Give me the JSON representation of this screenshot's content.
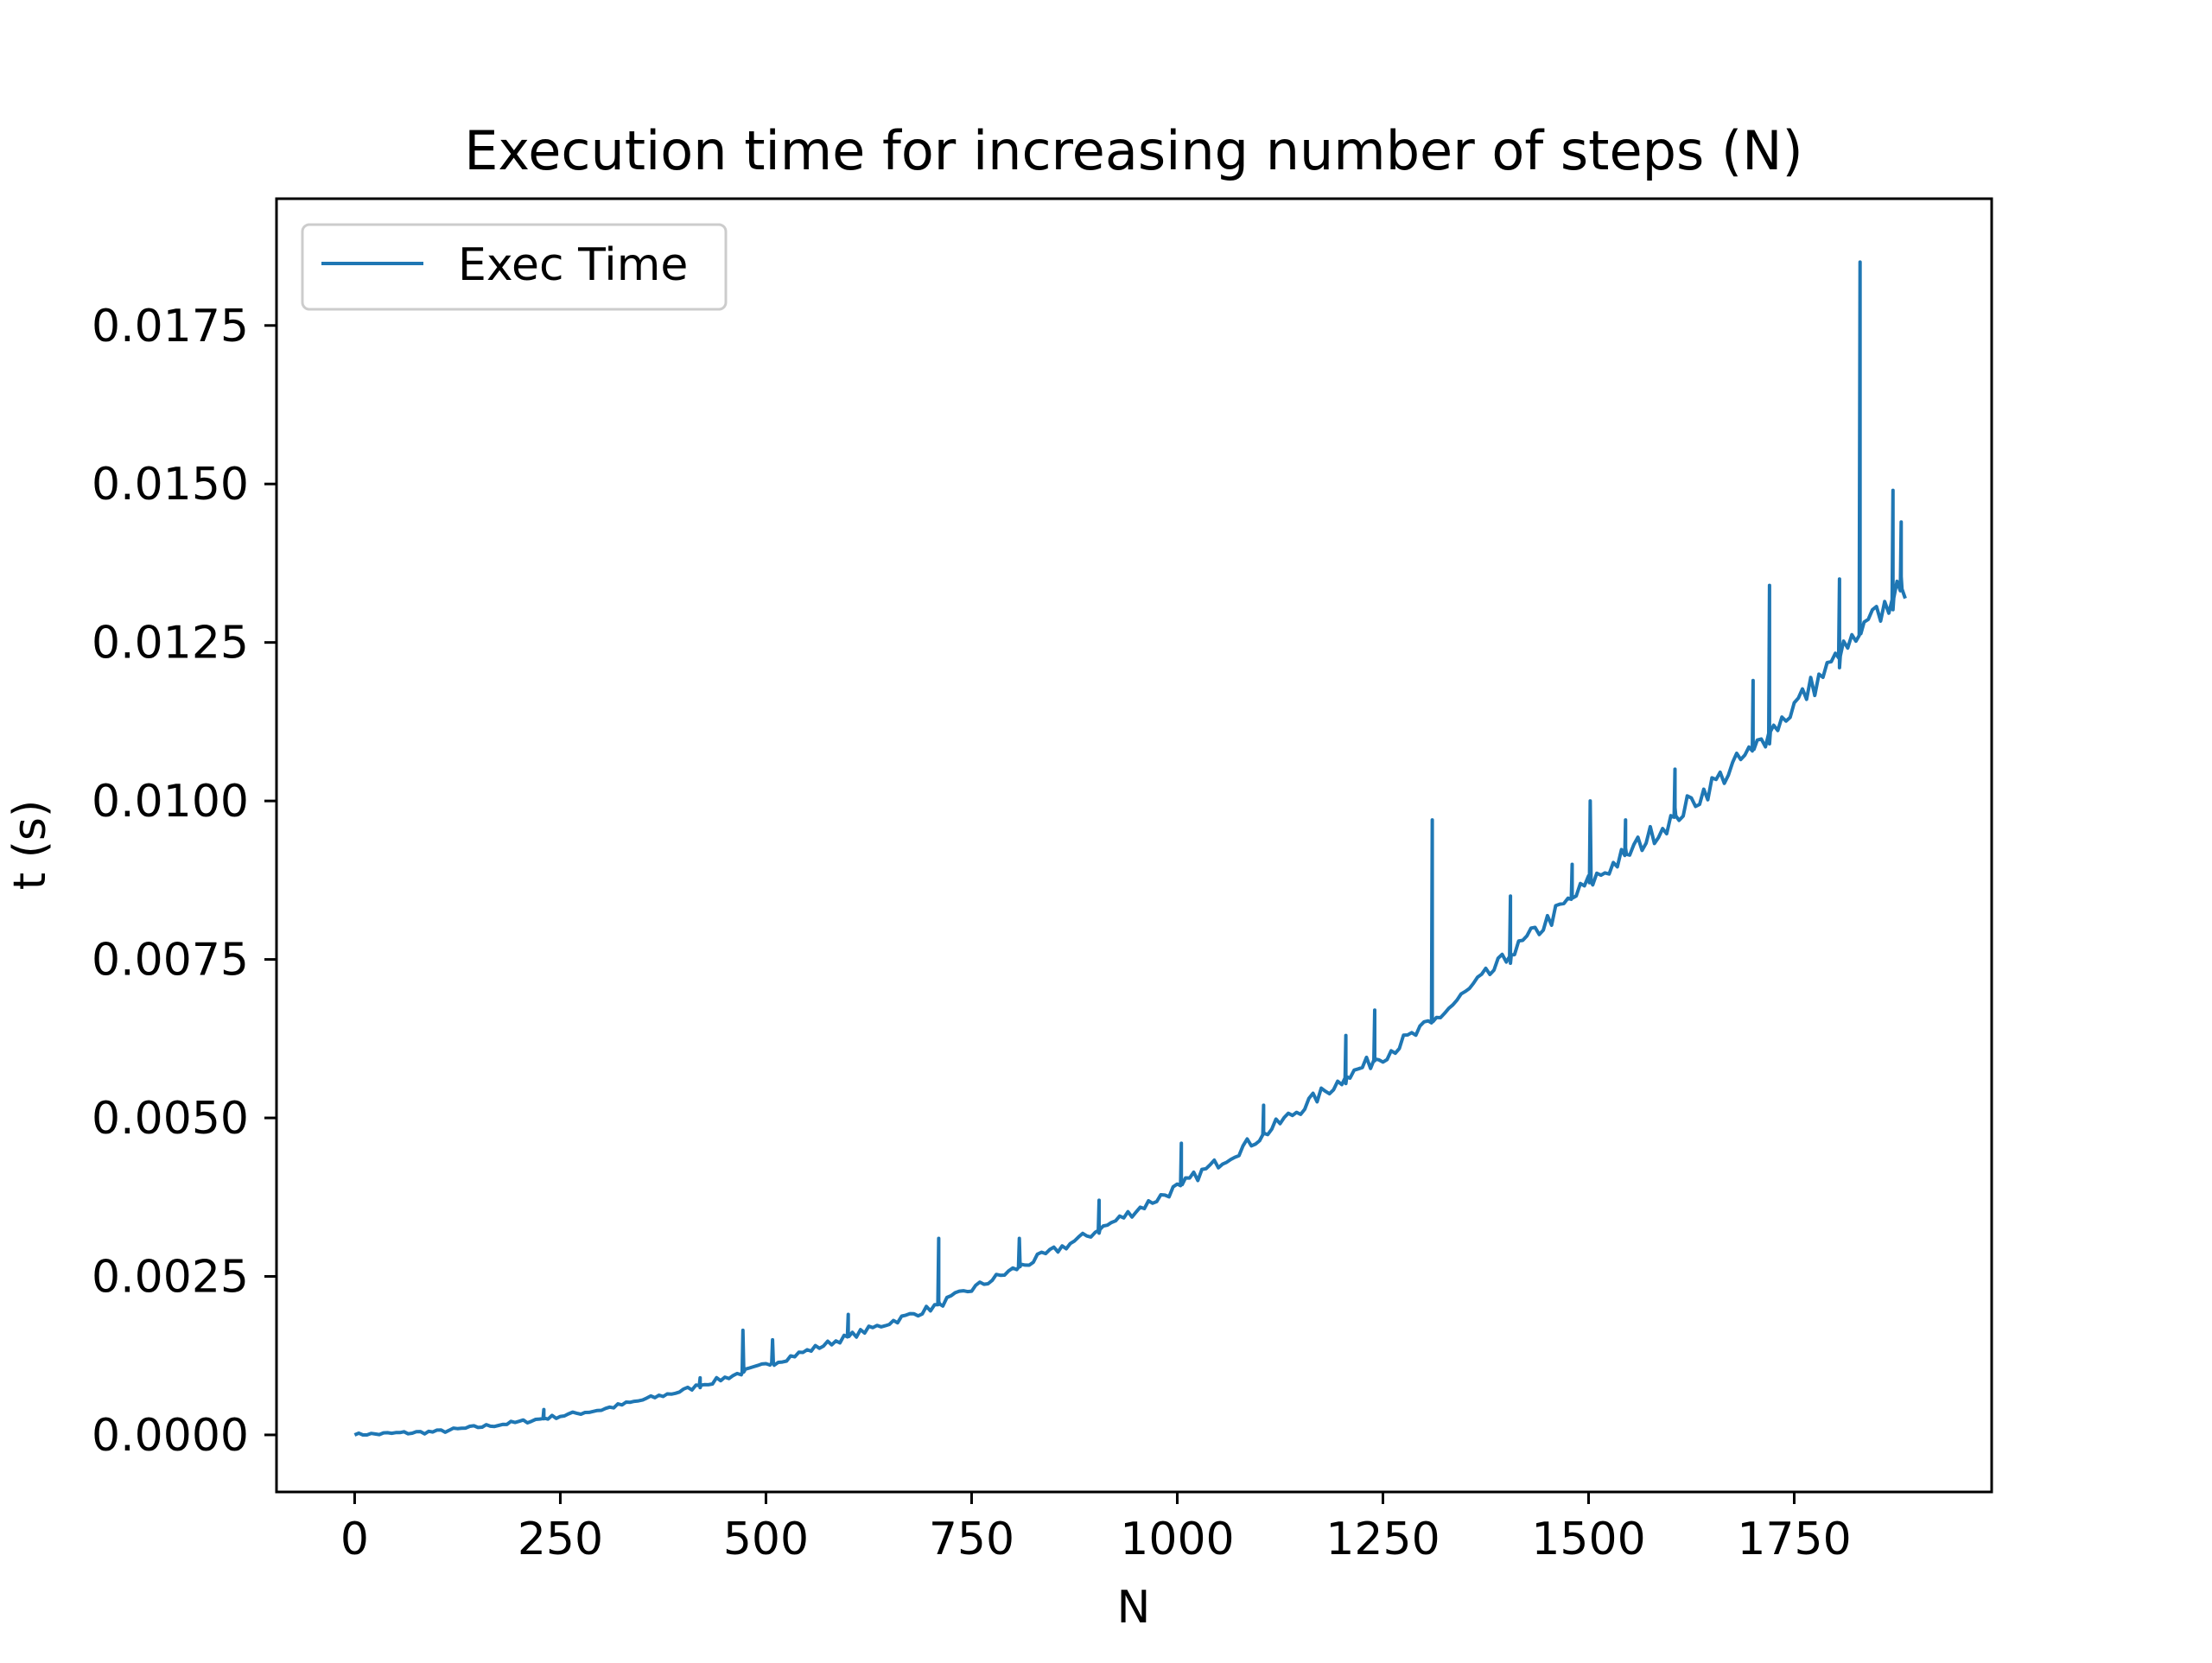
{
  "chart_data": {
    "type": "line",
    "title": "Execution time for increasing number of steps (N)",
    "xlabel": "N",
    "ylabel": "t (s)",
    "xlim": [
      -95,
      1990
    ],
    "ylim": [
      -0.0009,
      0.0195
    ],
    "xticks": [
      0,
      250,
      500,
      750,
      1000,
      1250,
      1500,
      1750
    ],
    "xtick_labels": [
      "0",
      "250",
      "500",
      "750",
      "1000",
      "1250",
      "1500",
      "1750"
    ],
    "yticks": [
      0.0,
      0.0025,
      0.005,
      0.0075,
      0.01,
      0.0125,
      0.015,
      0.0175
    ],
    "ytick_labels": [
      "0.0000",
      "0.0025",
      "0.0050",
      "0.0075",
      "0.0100",
      "0.0125",
      "0.0150",
      "0.0175"
    ],
    "grid": false,
    "legend_position": "upper left",
    "series": [
      {
        "name": "Exec Time",
        "color": "#1f77b4",
        "x_start": 0,
        "x_end": 1885,
        "x_step": 5,
        "trend": {
          "x": [
            0,
            100,
            200,
            300,
            400,
            500,
            600,
            700,
            800,
            900,
            1000,
            1100,
            1200,
            1300,
            1400,
            1500,
            1600,
            1700,
            1800,
            1885
          ],
          "y": [
            0.0,
            5e-05,
            0.0002,
            0.0004,
            0.0007,
            0.0011,
            0.00155,
            0.002,
            0.0026,
            0.0032,
            0.0039,
            0.0047,
            0.0056,
            0.0064,
            0.0075,
            0.0087,
            0.0097,
            0.0108,
            0.0122,
            0.0134
          ]
        },
        "spikes": [
          {
            "x": 230,
            "y": 0.0004
          },
          {
            "x": 420,
            "y": 0.0009
          },
          {
            "x": 472,
            "y": 0.00165
          },
          {
            "x": 508,
            "y": 0.0015
          },
          {
            "x": 600,
            "y": 0.0019
          },
          {
            "x": 710,
            "y": 0.0031
          },
          {
            "x": 808,
            "y": 0.0031
          },
          {
            "x": 905,
            "y": 0.0037
          },
          {
            "x": 1005,
            "y": 0.0046
          },
          {
            "x": 1105,
            "y": 0.0052
          },
          {
            "x": 1205,
            "y": 0.0063
          },
          {
            "x": 1240,
            "y": 0.0067
          },
          {
            "x": 1310,
            "y": 0.0097
          },
          {
            "x": 1405,
            "y": 0.0085
          },
          {
            "x": 1480,
            "y": 0.009
          },
          {
            "x": 1502,
            "y": 0.01
          },
          {
            "x": 1545,
            "y": 0.0097
          },
          {
            "x": 1605,
            "y": 0.0105
          },
          {
            "x": 1700,
            "y": 0.0119
          },
          {
            "x": 1720,
            "y": 0.0134
          },
          {
            "x": 1805,
            "y": 0.0135
          },
          {
            "x": 1830,
            "y": 0.0185
          },
          {
            "x": 1870,
            "y": 0.0149
          },
          {
            "x": 1880,
            "y": 0.0144
          }
        ]
      }
    ]
  }
}
